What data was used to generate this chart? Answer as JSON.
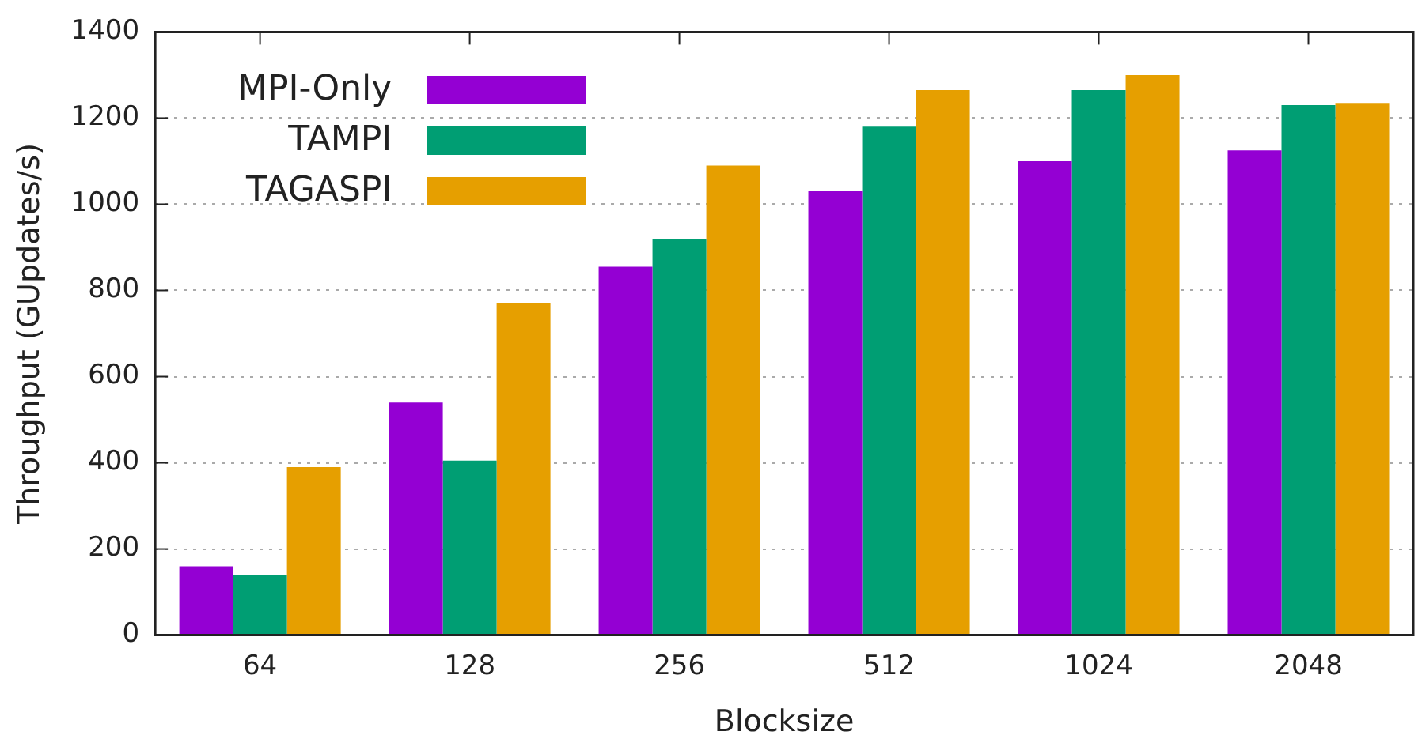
{
  "chart_data": {
    "type": "bar",
    "xlabel": "Blocksize",
    "ylabel": "Throughput (GUpdates/s)",
    "categories": [
      "64",
      "128",
      "256",
      "512",
      "1024",
      "2048"
    ],
    "series": [
      {
        "name": "MPI-Only",
        "color": "#9400d3",
        "values": [
          160,
          540,
          855,
          1030,
          1100,
          1125
        ]
      },
      {
        "name": "TAMPI",
        "color": "#009e73",
        "values": [
          140,
          405,
          920,
          1180,
          1265,
          1230
        ]
      },
      {
        "name": "TAGASPI",
        "color": "#e69f00",
        "values": [
          390,
          770,
          1090,
          1265,
          1300,
          1235
        ]
      }
    ],
    "ylim": [
      0,
      1400
    ],
    "yticks": [
      0,
      200,
      400,
      600,
      800,
      1000,
      1200,
      1400
    ],
    "grid": "y",
    "legend": "top left"
  }
}
